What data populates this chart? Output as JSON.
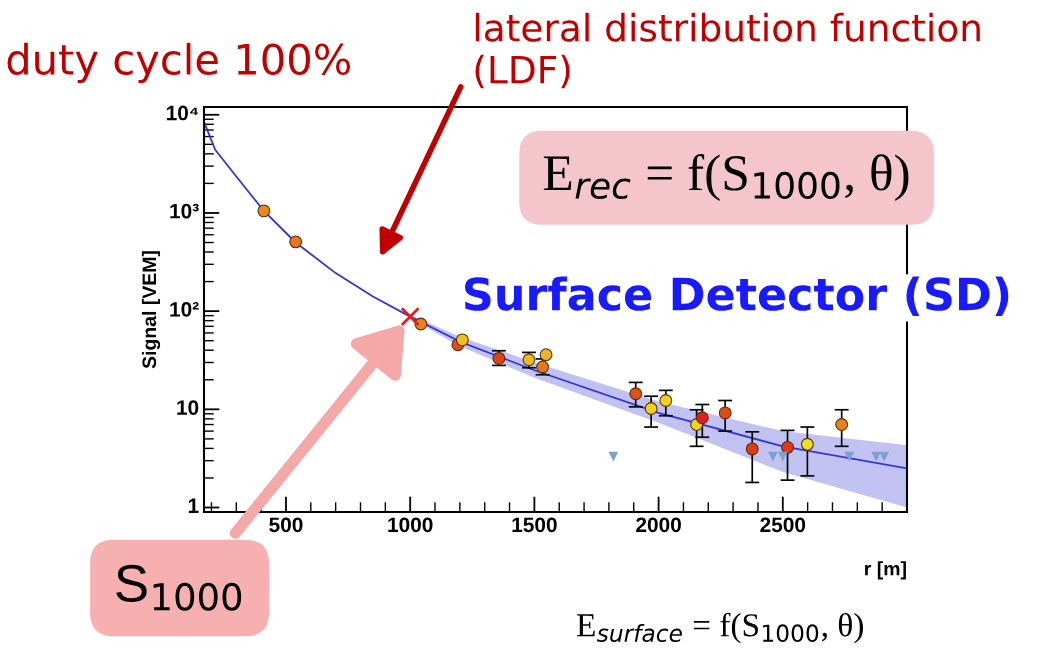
{
  "chart_data": {
    "type": "scatter",
    "xlabel": "r [m]",
    "ylabel": "Signal [VEM]",
    "log": "y",
    "grid": false,
    "xlim": [
      170,
      3000
    ],
    "xticks": [
      500,
      1000,
      1500,
      2000,
      2500
    ],
    "ylim": [
      0.9,
      12000
    ],
    "yticks": [
      1,
      10,
      {
        "value": 100,
        "label": "10²"
      },
      {
        "value": 1000,
        "label": "10³"
      },
      {
        "value": 10000,
        "label": "10⁴"
      }
    ],
    "series": [
      {
        "type": "line",
        "color": "#3535d5",
        "marker": "none",
        "x": [
          170,
          215,
          300,
          411,
          539,
          700,
          850,
          1000,
          1200,
          1500,
          2000,
          2500,
          3000
        ],
        "values": [
          8500,
          4400,
          2350,
          1050,
          500,
          244,
          141,
          88,
          49,
          25,
          9.2,
          4.2,
          2.5
        ],
        "lower": [
          null,
          null,
          null,
          null,
          null,
          null,
          null,
          84,
          44,
          21,
          7.3,
          2.3,
          1.0
        ],
        "upper": [
          null,
          null,
          null,
          null,
          null,
          null,
          null,
          92,
          55,
          30,
          12,
          6.0,
          4.3
        ]
      },
      {
        "marker": "circle",
        "x": [
          411,
          539,
          1043,
          1192,
          1210,
          1357,
          1478,
          1533,
          1547,
          1908,
          1970,
          2029,
          2153,
          2176,
          2268,
          2377,
          2519,
          2599,
          2737
        ],
        "values": [
          1050,
          508,
          74,
          45.5,
          51,
          33,
          32,
          27,
          36,
          14.4,
          10.2,
          12.3,
          7.0,
          8.2,
          9.2,
          3.95,
          4.1,
          4.4,
          7.0
        ],
        "colors": [
          "#e8891e",
          "#e8761e",
          "#e8821e",
          "#e0501a",
          "#f0c020",
          "#e0401a",
          "#f0b828",
          "#e8761e",
          "#f0b030",
          "#e0501a",
          "#f0d020",
          "#f0d020",
          "#f0d020",
          "#e02020",
          "#e04a1a",
          "#e03a1a",
          "#e03a1a",
          "#f0e020",
          "#e8821e"
        ],
        "errors": [
          null,
          null,
          null,
          null,
          null,
          [
            28,
            39.5
          ],
          [
            26.5,
            38
          ],
          [
            22.5,
            32.6
          ],
          null,
          [
            10.6,
            18.8
          ],
          [
            6.6,
            13.6
          ],
          [
            8.6,
            15.6
          ],
          [
            4.2,
            9.9
          ],
          [
            5.2,
            11.2
          ],
          [
            6.0,
            12.3
          ],
          [
            1.8,
            5.9
          ],
          [
            1.9,
            6.1
          ],
          [
            2.1,
            6.6
          ],
          [
            4.2,
            9.9
          ]
        ]
      },
      {
        "marker": "triangle",
        "color": "#7f9fcf",
        "x": [
          1818,
          2460,
          2500,
          2768,
          2876,
          2908
        ],
        "values": [
          3.3,
          3.3,
          3.3,
          3.3,
          3.3,
          3.3
        ]
      },
      {
        "marker": "cross",
        "color": "#e02020",
        "x": [
          1000
        ],
        "values": [
          88
        ]
      }
    ],
    "annotations": [
      "duty cycle 100%",
      "lateral distribution function (LDF)",
      "E$_{rec}$ = f(S$_{1000}$, θ)",
      "Surface Detector (SD)",
      "S$_{1000}$",
      "E$_{surface}$ = f(S$_{1000}$, θ)"
    ]
  }
}
